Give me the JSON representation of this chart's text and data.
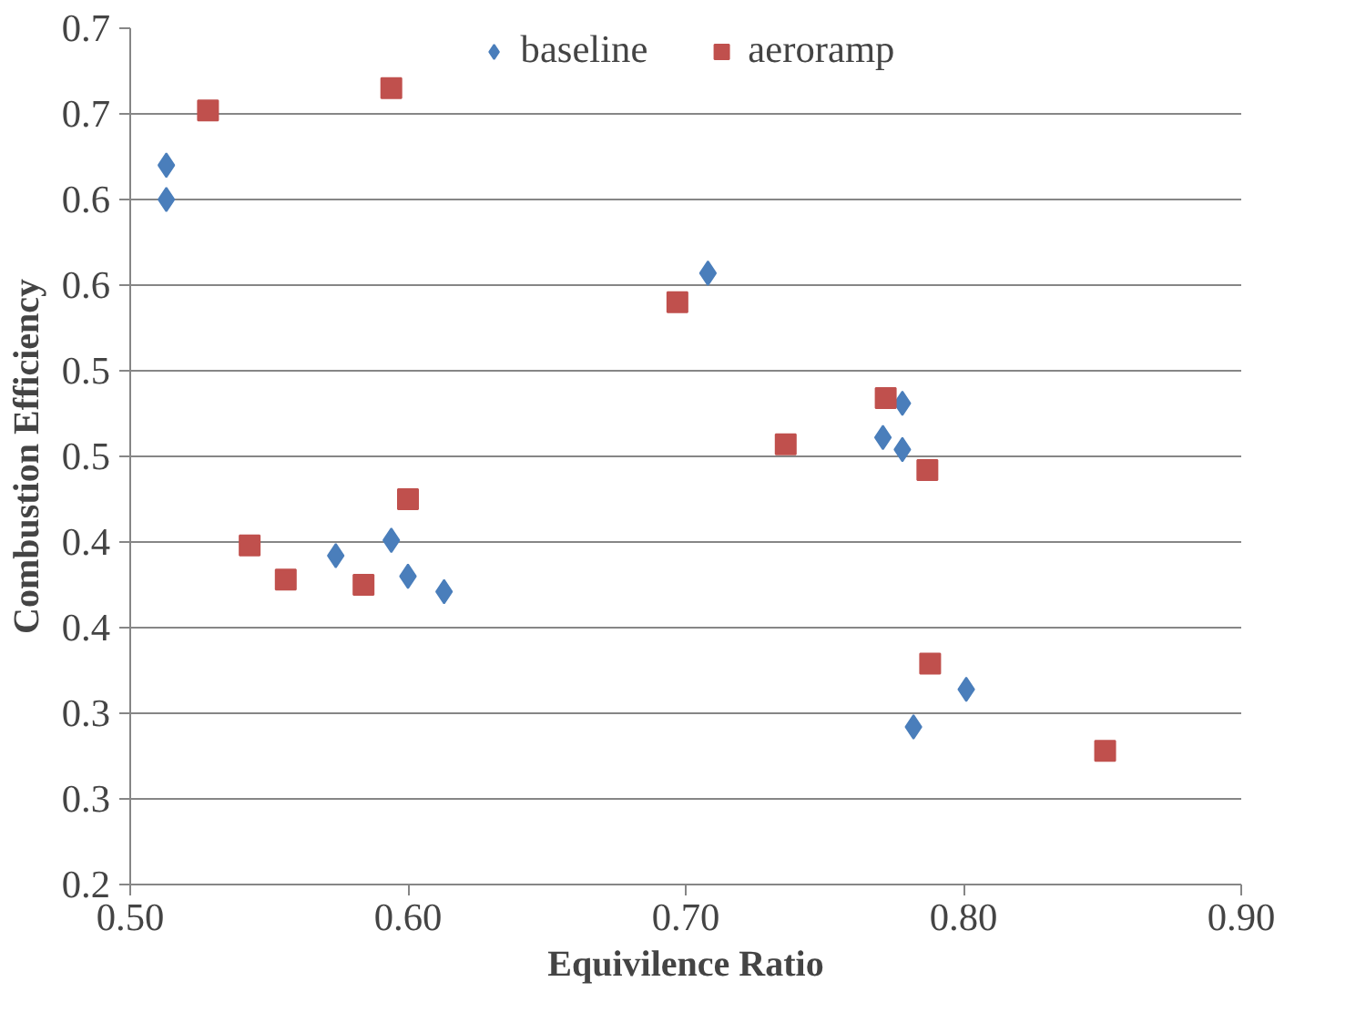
{
  "chart_data": {
    "type": "scatter",
    "xlabel": "Equivilence Ratio",
    "ylabel": "Combustion Efficiency",
    "xlim": [
      0.5,
      0.9
    ],
    "xticks": [
      {
        "value": 0.5,
        "label": "0.50"
      },
      {
        "value": 0.6,
        "label": "0.60"
      },
      {
        "value": 0.7,
        "label": "0.70"
      },
      {
        "value": 0.8,
        "label": "0.80"
      },
      {
        "value": 0.9,
        "label": "0.90"
      }
    ],
    "ylim": [
      0.2,
      0.7
    ],
    "yticks": [
      {
        "value": 0.2,
        "label": "0.2"
      },
      {
        "value": 0.25,
        "label": "0.3"
      },
      {
        "value": 0.3,
        "label": "0.3"
      },
      {
        "value": 0.35,
        "label": "0.4"
      },
      {
        "value": 0.4,
        "label": "0.4"
      },
      {
        "value": 0.45,
        "label": "0.5"
      },
      {
        "value": 0.5,
        "label": "0.5"
      },
      {
        "value": 0.55,
        "label": "0.6"
      },
      {
        "value": 0.6,
        "label": "0.6"
      },
      {
        "value": 0.65,
        "label": "0.7"
      },
      {
        "value": 0.7,
        "label": "0.7"
      }
    ],
    "grid": "y",
    "legend": "top",
    "series": [
      {
        "name": "baseline",
        "color": "#4a7ebb",
        "marker": "diamond",
        "x": [
          0.513,
          0.513,
          0.708,
          0.778,
          0.771,
          0.778,
          0.594,
          0.574,
          0.6,
          0.613,
          0.801,
          0.782
        ],
        "values": [
          0.62,
          0.6,
          0.557,
          0.481,
          0.461,
          0.454,
          0.401,
          0.392,
          0.38,
          0.371,
          0.314,
          0.292
        ]
      },
      {
        "name": "aeroramp",
        "color": "#c0504d",
        "marker": "square",
        "x": [
          0.528,
          0.594,
          0.697,
          0.736,
          0.772,
          0.787,
          0.6,
          0.543,
          0.556,
          0.584,
          0.788,
          0.851
        ],
        "values": [
          0.652,
          0.665,
          0.54,
          0.457,
          0.484,
          0.442,
          0.425,
          0.398,
          0.378,
          0.375,
          0.329,
          0.278
        ]
      }
    ]
  }
}
